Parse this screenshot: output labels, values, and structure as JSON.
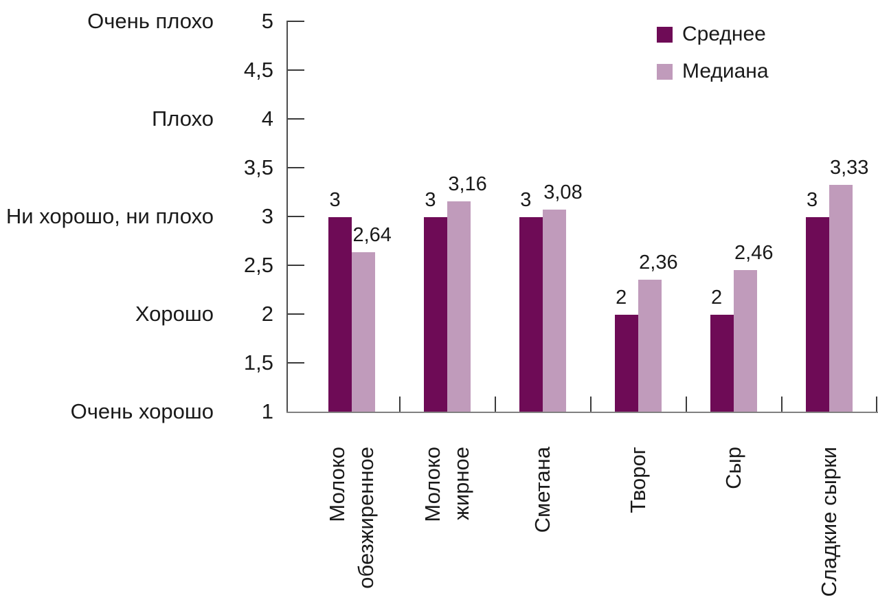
{
  "chart_data": {
    "type": "bar",
    "title": "",
    "xlabel": "",
    "ylabel": "",
    "categories": [
      "Молоко обезжиренное",
      "Молоко жирное",
      "Сметана",
      "Творог",
      "Сыр",
      "Сладкие сырки"
    ],
    "categories_display": [
      "Молоко\nобезжиренное",
      "Молоко\nжирное",
      "Сметана",
      "Творог",
      "Сыр",
      "Сладкие сырки"
    ],
    "series": [
      {
        "name": "Среднее",
        "color": "#6E0B56",
        "values": [
          3,
          3,
          3,
          2,
          2,
          3
        ],
        "labels": [
          "3",
          "3",
          "3",
          "2",
          "2",
          "3"
        ]
      },
      {
        "name": "Медиана",
        "color": "#C09BBB",
        "values": [
          2.64,
          3.16,
          3.08,
          2.36,
          2.46,
          3.33
        ],
        "labels": [
          "2,64",
          "3,16",
          "3,08",
          "2,36",
          "2,46",
          "3,33"
        ]
      }
    ],
    "y_axis": {
      "min": 1,
      "max": 5,
      "step": 0.5,
      "tick_labels": [
        "5",
        "4,5",
        "4",
        "3,5",
        "3",
        "2,5",
        "2",
        "1,5",
        "1"
      ],
      "scale_labels": [
        {
          "text": "Очень плохо",
          "value": 5
        },
        {
          "text": "Плохо",
          "value": 4
        },
        {
          "text": "Ни хорошо, ни плохо",
          "value": 3
        },
        {
          "text": "Хорошо",
          "value": 2
        },
        {
          "text": "Очень хорошо",
          "value": 1
        }
      ]
    },
    "legend_position": "top-right",
    "grid": false
  },
  "colors": {
    "series_mean": "#6E0B56",
    "series_median": "#C09BBB",
    "x_axis": "#808080",
    "y_axis": "#4D4D4D",
    "tick": "#3A3A3A",
    "text": "#1A1A1A",
    "background": "#FFFFFF"
  }
}
